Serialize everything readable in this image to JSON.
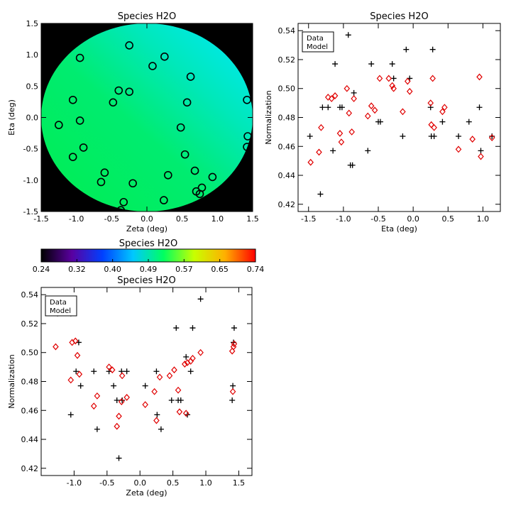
{
  "colors": {
    "data": "#000000",
    "model": "#e00000",
    "background": "#000000"
  },
  "chart_data": [
    {
      "id": "map",
      "type": "heatmap",
      "title": "Species H2O",
      "xlabel": "Zeta (deg)",
      "ylabel": "Eta (deg)",
      "xlim": [
        -1.5,
        1.5
      ],
      "ylim": [
        -1.5,
        1.5
      ],
      "xticks": [
        "-1.5",
        "-1.0",
        "-0.5",
        "0.0",
        "0.5",
        "1.0",
        "1.5"
      ],
      "yticks": [
        "-1.5",
        "-1.0",
        "-0.5",
        "0.0",
        "0.5",
        "1.0",
        "1.5"
      ],
      "xtick_values": [
        -1.5,
        -1.0,
        -0.5,
        0.0,
        0.5,
        1.0,
        1.5
      ],
      "ytick_values": [
        -1.5,
        -1.0,
        -0.5,
        0.0,
        0.5,
        1.0,
        1.5
      ],
      "field_radius": 1.5,
      "stations": [
        [
          -0.25,
          1.15
        ],
        [
          -0.95,
          0.95
        ],
        [
          0.08,
          0.82
        ],
        [
          0.25,
          0.97
        ],
        [
          0.62,
          0.65
        ],
        [
          -0.4,
          0.43
        ],
        [
          -0.25,
          0.41
        ],
        [
          -1.05,
          0.28
        ],
        [
          -0.48,
          0.24
        ],
        [
          0.57,
          0.24
        ],
        [
          1.42,
          0.28
        ],
        [
          -1.25,
          -0.12
        ],
        [
          -0.95,
          -0.05
        ],
        [
          0.48,
          -0.16
        ],
        [
          -0.9,
          -0.48
        ],
        [
          1.43,
          -0.3
        ],
        [
          1.42,
          -0.47
        ],
        [
          0.54,
          -0.59
        ],
        [
          -1.05,
          -0.63
        ],
        [
          -0.6,
          -0.88
        ],
        [
          0.68,
          -0.85
        ],
        [
          0.3,
          -0.92
        ],
        [
          0.93,
          -0.95
        ],
        [
          -0.65,
          -1.03
        ],
        [
          -0.2,
          -1.05
        ],
        [
          0.78,
          -1.12
        ],
        [
          0.7,
          -1.18
        ],
        [
          0.75,
          -1.22
        ],
        [
          0.24,
          -1.32
        ],
        [
          -0.33,
          -1.35
        ],
        [
          -0.37,
          -1.48
        ]
      ]
    },
    {
      "id": "eta",
      "type": "scatter",
      "title": "Species H2O",
      "xlabel": "Eta (deg)",
      "ylabel": "Normalization",
      "xlim": [
        -1.65,
        1.25
      ],
      "ylim": [
        0.415,
        0.545
      ],
      "xticks": [
        "-1.5",
        "-1.0",
        "-0.5",
        "0.0",
        "0.5",
        "1.0"
      ],
      "xtick_values": [
        -1.5,
        -1.0,
        -0.5,
        0.0,
        0.5,
        1.0
      ],
      "yticks": [
        "0.42",
        "0.44",
        "0.46",
        "0.48",
        "0.50",
        "0.52",
        "0.54"
      ],
      "ytick_values": [
        0.42,
        0.44,
        0.46,
        0.48,
        0.5,
        0.52,
        0.54
      ],
      "legend": [
        "Data",
        "Model"
      ],
      "legend_position": "top-left",
      "series": [
        {
          "name": "Data",
          "marker": "plus",
          "points": [
            [
              -1.48,
              0.467
            ],
            [
              -1.33,
              0.427
            ],
            [
              -1.3,
              0.487
            ],
            [
              -1.22,
              0.487
            ],
            [
              -1.15,
              0.457
            ],
            [
              -1.12,
              0.517
            ],
            [
              -1.05,
              0.487
            ],
            [
              -1.02,
              0.487
            ],
            [
              -0.93,
              0.537
            ],
            [
              -0.9,
              0.447
            ],
            [
              -0.87,
              0.447
            ],
            [
              -0.85,
              0.497
            ],
            [
              -0.65,
              0.457
            ],
            [
              -0.6,
              0.517
            ],
            [
              -0.5,
              0.477
            ],
            [
              -0.47,
              0.477
            ],
            [
              -0.3,
              0.517
            ],
            [
              -0.28,
              0.507
            ],
            [
              -0.15,
              0.467
            ],
            [
              -0.1,
              0.527
            ],
            [
              -0.05,
              0.507
            ],
            [
              0.25,
              0.487
            ],
            [
              0.26,
              0.467
            ],
            [
              0.28,
              0.527
            ],
            [
              0.3,
              0.467
            ],
            [
              0.42,
              0.477
            ],
            [
              0.65,
              0.467
            ],
            [
              0.8,
              0.477
            ],
            [
              0.95,
              0.487
            ],
            [
              0.97,
              0.457
            ],
            [
              1.13,
              0.467
            ]
          ]
        },
        {
          "name": "Model",
          "marker": "diamond",
          "points": [
            [
              -1.47,
              0.449
            ],
            [
              -1.35,
              0.456
            ],
            [
              -1.32,
              0.473
            ],
            [
              -1.22,
              0.494
            ],
            [
              -1.17,
              0.493
            ],
            [
              -1.12,
              0.495
            ],
            [
              -1.05,
              0.469
            ],
            [
              -1.03,
              0.463
            ],
            [
              -0.95,
              0.5
            ],
            [
              -0.92,
              0.483
            ],
            [
              -0.88,
              0.47
            ],
            [
              -0.85,
              0.493
            ],
            [
              -0.65,
              0.481
            ],
            [
              -0.6,
              0.488
            ],
            [
              -0.55,
              0.485
            ],
            [
              -0.48,
              0.507
            ],
            [
              -0.35,
              0.507
            ],
            [
              -0.3,
              0.502
            ],
            [
              -0.28,
              0.5
            ],
            [
              -0.15,
              0.484
            ],
            [
              -0.08,
              0.505
            ],
            [
              -0.05,
              0.498
            ],
            [
              0.25,
              0.49
            ],
            [
              0.26,
              0.475
            ],
            [
              0.28,
              0.507
            ],
            [
              0.3,
              0.473
            ],
            [
              0.42,
              0.484
            ],
            [
              0.45,
              0.487
            ],
            [
              0.65,
              0.458
            ],
            [
              0.85,
              0.465
            ],
            [
              0.95,
              0.508
            ],
            [
              0.97,
              0.453
            ],
            [
              1.13,
              0.466
            ]
          ]
        }
      ]
    },
    {
      "id": "colorbar",
      "type": "heatmap",
      "title": "Species H2O",
      "range": [
        0.24,
        0.74
      ],
      "tick_labels": [
        "0.24",
        "0.32",
        "0.40",
        "0.49",
        "0.57",
        "0.65",
        "0.74"
      ],
      "colormap": [
        "#000000",
        "#5a00a0",
        "#0040ff",
        "#00c8ff",
        "#00ff60",
        "#c8ff00",
        "#ffb000",
        "#ff0000"
      ]
    },
    {
      "id": "zeta",
      "type": "scatter",
      "title": "Species H2O",
      "xlabel": "Zeta (deg)",
      "ylabel": "Normalization",
      "xlim": [
        -1.5,
        1.7
      ],
      "ylim": [
        0.415,
        0.545
      ],
      "xticks": [
        "-1.0",
        "-0.5",
        "0.0",
        "0.5",
        "1.0",
        "1.5"
      ],
      "xtick_values": [
        -1.0,
        -0.5,
        0.0,
        0.5,
        1.0,
        1.5
      ],
      "yticks": [
        "0.42",
        "0.44",
        "0.46",
        "0.48",
        "0.50",
        "0.52",
        "0.54"
      ],
      "ytick_values": [
        0.42,
        0.44,
        0.46,
        0.48,
        0.5,
        0.52,
        0.54
      ],
      "legend": [
        "Data",
        "Model"
      ],
      "legend_position": "top-left",
      "series": [
        {
          "name": "Data",
          "marker": "plus",
          "points": [
            [
              -1.25,
              0.527
            ],
            [
              -1.05,
              0.527
            ],
            [
              -1.05,
              0.457
            ],
            [
              -0.97,
              0.487
            ],
            [
              -0.93,
              0.507
            ],
            [
              -0.9,
              0.477
            ],
            [
              -0.7,
              0.487
            ],
            [
              -0.65,
              0.447
            ],
            [
              -0.47,
              0.487
            ],
            [
              -0.4,
              0.477
            ],
            [
              -0.35,
              0.467
            ],
            [
              -0.32,
              0.427
            ],
            [
              -0.28,
              0.487
            ],
            [
              -0.27,
              0.467
            ],
            [
              -0.2,
              0.487
            ],
            [
              0.08,
              0.477
            ],
            [
              0.25,
              0.487
            ],
            [
              0.26,
              0.457
            ],
            [
              0.32,
              0.447
            ],
            [
              0.48,
              0.467
            ],
            [
              0.55,
              0.517
            ],
            [
              0.58,
              0.467
            ],
            [
              0.62,
              0.467
            ],
            [
              0.7,
              0.497
            ],
            [
              0.72,
              0.457
            ],
            [
              0.77,
              0.487
            ],
            [
              0.8,
              0.517
            ],
            [
              0.92,
              0.537
            ],
            [
              1.4,
              0.467
            ],
            [
              1.41,
              0.477
            ],
            [
              1.42,
              0.507
            ],
            [
              1.43,
              0.517
            ]
          ]
        },
        {
          "name": "Model",
          "marker": "diamond",
          "points": [
            [
              -1.28,
              0.504
            ],
            [
              -1.05,
              0.481
            ],
            [
              -1.03,
              0.507
            ],
            [
              -0.98,
              0.508
            ],
            [
              -0.95,
              0.498
            ],
            [
              -0.92,
              0.485
            ],
            [
              -0.7,
              0.463
            ],
            [
              -0.65,
              0.47
            ],
            [
              -0.47,
              0.49
            ],
            [
              -0.42,
              0.488
            ],
            [
              -0.35,
              0.449
            ],
            [
              -0.32,
              0.456
            ],
            [
              -0.28,
              0.466
            ],
            [
              -0.27,
              0.484
            ],
            [
              -0.2,
              0.469
            ],
            [
              0.08,
              0.464
            ],
            [
              0.22,
              0.473
            ],
            [
              0.25,
              0.453
            ],
            [
              0.3,
              0.483
            ],
            [
              0.45,
              0.484
            ],
            [
              0.52,
              0.488
            ],
            [
              0.58,
              0.474
            ],
            [
              0.6,
              0.459
            ],
            [
              0.68,
              0.492
            ],
            [
              0.7,
              0.458
            ],
            [
              0.72,
              0.493
            ],
            [
              0.77,
              0.494
            ],
            [
              0.8,
              0.496
            ],
            [
              0.92,
              0.5
            ],
            [
              1.4,
              0.501
            ],
            [
              1.41,
              0.473
            ],
            [
              1.42,
              0.504
            ],
            [
              1.43,
              0.506
            ]
          ]
        }
      ]
    }
  ]
}
